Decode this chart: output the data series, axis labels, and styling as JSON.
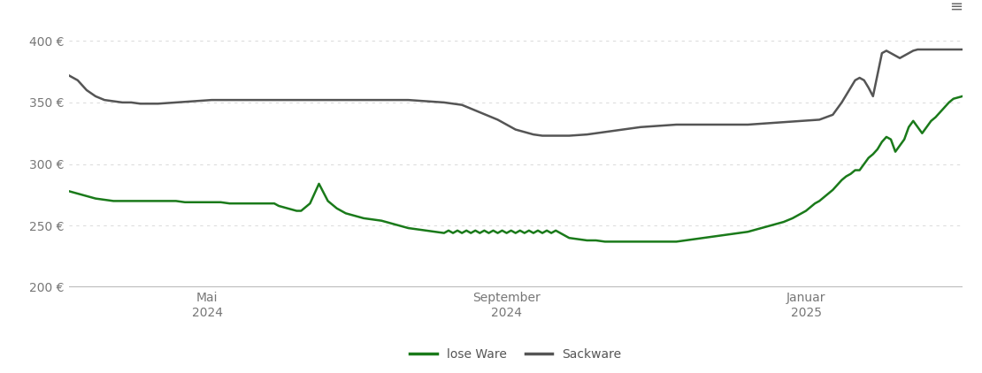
{
  "ylim": [
    200,
    415
  ],
  "yticks": [
    200,
    250,
    300,
    350,
    400
  ],
  "ytick_labels": [
    "200 €",
    "250 €",
    "300 €",
    "350 €",
    "400 €"
  ],
  "background_color": "#ffffff",
  "grid_color": "#dddddd",
  "line_lose_color": "#1a7a1a",
  "line_sack_color": "#555555",
  "legend_lose": "lose Ware",
  "legend_sack": "Sackware",
  "x_tick_labels": [
    "Mai\n2024",
    "September\n2024",
    "Januar\n2025"
  ],
  "x_tick_positions": [
    0.155,
    0.49,
    0.825
  ],
  "lose_ware_x": [
    0.0,
    0.01,
    0.02,
    0.03,
    0.04,
    0.05,
    0.06,
    0.07,
    0.08,
    0.09,
    0.1,
    0.11,
    0.12,
    0.13,
    0.14,
    0.15,
    0.16,
    0.17,
    0.18,
    0.19,
    0.2,
    0.21,
    0.22,
    0.23,
    0.235,
    0.24,
    0.245,
    0.25,
    0.255,
    0.26,
    0.27,
    0.28,
    0.29,
    0.3,
    0.31,
    0.32,
    0.33,
    0.34,
    0.35,
    0.36,
    0.37,
    0.38,
    0.39,
    0.4,
    0.41,
    0.42,
    0.425,
    0.43,
    0.435,
    0.44,
    0.445,
    0.45,
    0.455,
    0.46,
    0.465,
    0.47,
    0.475,
    0.48,
    0.485,
    0.49,
    0.495,
    0.5,
    0.505,
    0.51,
    0.515,
    0.52,
    0.525,
    0.53,
    0.535,
    0.54,
    0.545,
    0.55,
    0.56,
    0.57,
    0.58,
    0.59,
    0.6,
    0.61,
    0.62,
    0.63,
    0.64,
    0.65,
    0.66,
    0.67,
    0.68,
    0.69,
    0.7,
    0.71,
    0.72,
    0.73,
    0.74,
    0.75,
    0.76,
    0.77,
    0.78,
    0.79,
    0.8,
    0.81,
    0.815,
    0.82,
    0.825,
    0.83,
    0.835,
    0.84,
    0.845,
    0.85,
    0.855,
    0.86,
    0.865,
    0.87,
    0.875,
    0.88,
    0.885,
    0.89,
    0.895,
    0.9,
    0.905,
    0.91,
    0.915,
    0.92,
    0.925,
    0.93,
    0.935,
    0.94,
    0.945,
    0.95,
    0.955,
    0.96,
    0.965,
    0.97,
    0.975,
    0.98,
    0.985,
    0.99,
    1.0
  ],
  "lose_ware_y": [
    278,
    276,
    274,
    272,
    271,
    270,
    270,
    270,
    270,
    270,
    270,
    270,
    270,
    269,
    269,
    269,
    269,
    269,
    268,
    268,
    268,
    268,
    268,
    268,
    266,
    265,
    264,
    263,
    262,
    262,
    268,
    284,
    270,
    264,
    260,
    258,
    256,
    255,
    254,
    252,
    250,
    248,
    247,
    246,
    245,
    244,
    246,
    244,
    246,
    244,
    246,
    244,
    246,
    244,
    246,
    244,
    246,
    244,
    246,
    244,
    246,
    244,
    246,
    244,
    246,
    244,
    246,
    244,
    246,
    244,
    246,
    244,
    240,
    239,
    238,
    238,
    237,
    237,
    237,
    237,
    237,
    237,
    237,
    237,
    237,
    238,
    239,
    240,
    241,
    242,
    243,
    244,
    245,
    247,
    249,
    251,
    253,
    256,
    258,
    260,
    262,
    265,
    268,
    270,
    273,
    276,
    279,
    283,
    287,
    290,
    292,
    295,
    295,
    300,
    305,
    308,
    312,
    318,
    322,
    320,
    310,
    315,
    320,
    330,
    335,
    330,
    325,
    330,
    335,
    338,
    342,
    346,
    350,
    353,
    355
  ],
  "sack_ware_x": [
    0.0,
    0.01,
    0.02,
    0.03,
    0.04,
    0.05,
    0.06,
    0.07,
    0.08,
    0.1,
    0.12,
    0.14,
    0.16,
    0.18,
    0.2,
    0.22,
    0.24,
    0.26,
    0.28,
    0.3,
    0.32,
    0.34,
    0.36,
    0.38,
    0.4,
    0.42,
    0.44,
    0.46,
    0.48,
    0.49,
    0.5,
    0.51,
    0.52,
    0.53,
    0.54,
    0.55,
    0.56,
    0.58,
    0.6,
    0.62,
    0.64,
    0.66,
    0.68,
    0.7,
    0.72,
    0.74,
    0.76,
    0.78,
    0.8,
    0.82,
    0.84,
    0.855,
    0.86,
    0.865,
    0.87,
    0.875,
    0.88,
    0.885,
    0.89,
    0.895,
    0.9,
    0.91,
    0.915,
    0.92,
    0.925,
    0.93,
    0.935,
    0.94,
    0.945,
    0.95,
    0.96,
    0.97,
    0.98,
    0.99,
    1.0
  ],
  "sack_ware_y": [
    372,
    368,
    360,
    355,
    352,
    351,
    350,
    350,
    349,
    349,
    350,
    351,
    352,
    352,
    352,
    352,
    352,
    352,
    352,
    352,
    352,
    352,
    352,
    352,
    351,
    350,
    348,
    342,
    336,
    332,
    328,
    326,
    324,
    323,
    323,
    323,
    323,
    324,
    326,
    328,
    330,
    331,
    332,
    332,
    332,
    332,
    332,
    333,
    334,
    335,
    336,
    340,
    345,
    350,
    356,
    362,
    368,
    370,
    368,
    362,
    355,
    390,
    392,
    390,
    388,
    386,
    388,
    390,
    392,
    393,
    393,
    393,
    393,
    393,
    393
  ]
}
